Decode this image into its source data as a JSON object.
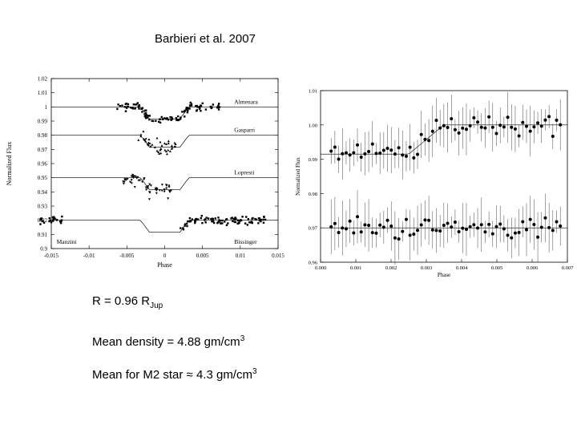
{
  "header": {
    "citation": "Barbieri et al. 2007"
  },
  "notes": {
    "radius_prefix": "R = 0.96 R",
    "radius_sub": "Jup",
    "density_prefix": "Mean density = 4.88 gm/cm",
    "density_sup": "3",
    "m2_prefix": "Mean for M2 star",
    "m2_approx": "≈",
    "m2_value": "4.3 gm/cm",
    "m2_sup": "3"
  },
  "chart_data": [
    {
      "type": "scatter",
      "title": "",
      "xlabel": "Phase",
      "ylabel": "Normalized Flux",
      "xlim": [
        -0.015,
        0.015
      ],
      "ylim": [
        0.9,
        1.02
      ],
      "xticks": [
        "-0.015",
        "-0.01",
        "-0.005",
        "0",
        "0.005",
        "0.01",
        "0.015"
      ],
      "yticks": [
        "0.9",
        "0.91",
        "0.92",
        "0.93",
        "0.94",
        "0.95",
        "0.96",
        "0.97",
        "0.98",
        "0.99",
        "1",
        "1.01",
        "1.02"
      ],
      "series": [
        {
          "name": "Almenara",
          "offset": 1.0,
          "xrange": [
            -0.0065,
            0.0075
          ],
          "marker": "square"
        },
        {
          "name": "Gasparri",
          "offset": 0.98,
          "xrange": [
            -0.0035,
            0.0015
          ],
          "marker": "triangle-up"
        },
        {
          "name": "Lopresti",
          "offset": 0.95,
          "xrange": [
            -0.0055,
            0.001
          ],
          "marker": "triangle-down"
        },
        {
          "name": "Manzini",
          "offset": 0.92,
          "xrange": [
            -0.0165,
            -0.0135
          ],
          "marker": "square"
        },
        {
          "name": "Bissinger",
          "offset": 0.92,
          "xrange": [
            0.002,
            0.0135
          ],
          "marker": "square"
        }
      ],
      "transit": {
        "center": 0.0,
        "depth": 0.0085,
        "half_width": 0.002,
        "ingress": 0.0012
      },
      "grid": false,
      "legend": "labels at right of each curve"
    },
    {
      "type": "scatter",
      "title": "",
      "xlabel": "Phase",
      "ylabel": "Normalized Flux",
      "xlim": [
        0.0,
        0.007
      ],
      "ylim": [
        0.96,
        1.01
      ],
      "xticks": [
        "0.000",
        "0.001",
        "0.002",
        "0.003",
        "0.004",
        "0.005",
        "0.006",
        "0.007"
      ],
      "yticks": [
        "0.96",
        "0.97",
        "0.98",
        "0.99",
        "1.00",
        "1.01"
      ],
      "series": [
        {
          "name": "",
          "type": "transit-with-errorbars",
          "offset": 1.0,
          "baseline_y": 1.0,
          "depth": 0.0085
        },
        {
          "name": "",
          "type": "residuals-with-errorbars",
          "offset": 0.97,
          "baseline_y": 0.97
        }
      ],
      "transit": {
        "ingress_end": 0.0015,
        "egress_start": 0.0025,
        "egress_end": 0.0035
      },
      "grid": false
    }
  ]
}
